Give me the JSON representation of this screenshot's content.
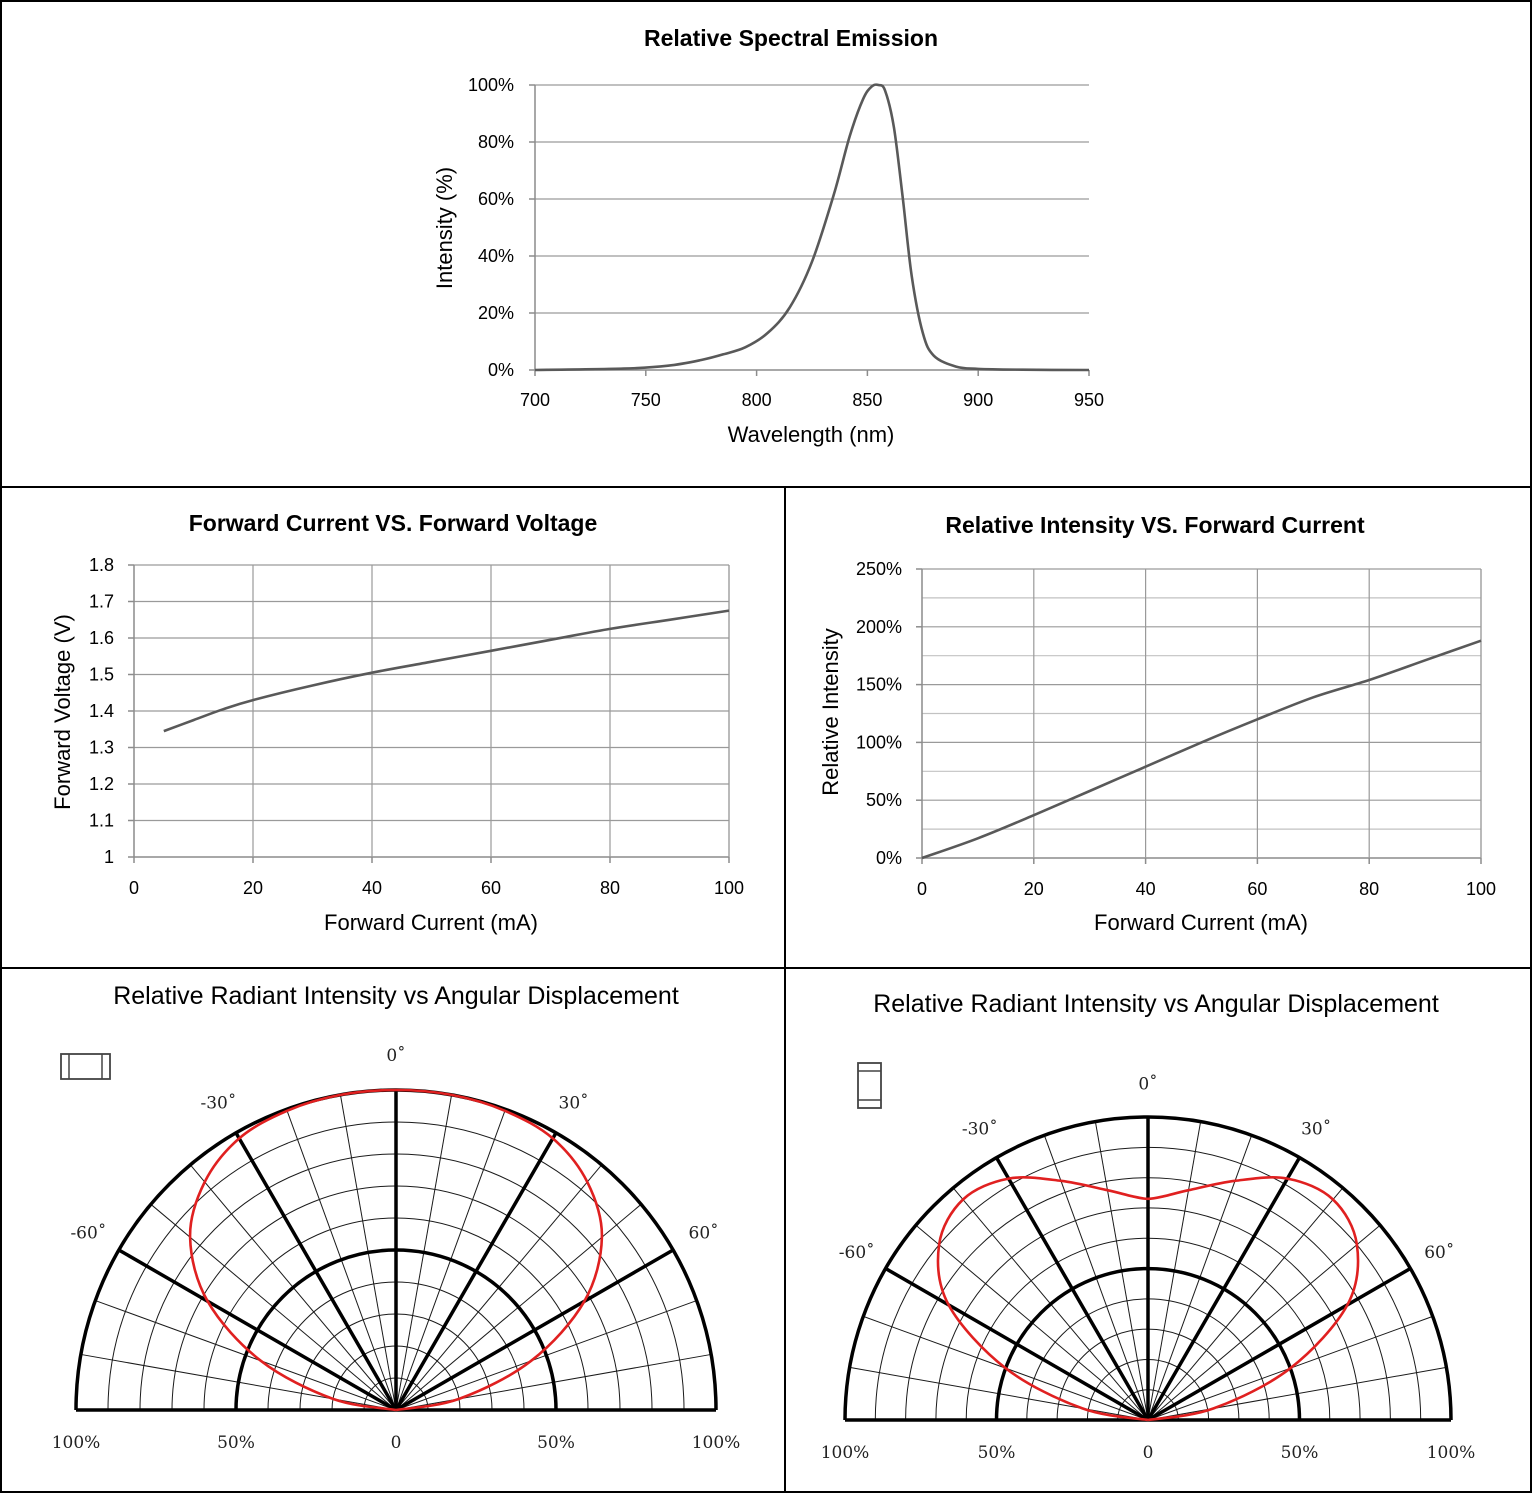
{
  "chart_data": [
    {
      "id": "spectral",
      "type": "line",
      "title": "Relative Spectral Emission",
      "xlabel": "Wavelength (nm)",
      "ylabel": "Intensity (%)",
      "xlim": [
        700,
        950
      ],
      "ylim": [
        0,
        100
      ],
      "xticks": [
        "700",
        "750",
        "800",
        "850",
        "900",
        "950"
      ],
      "yticks": [
        "0%",
        "20%",
        "40%",
        "60%",
        "80%",
        "100%"
      ],
      "grid": "horizontal",
      "series": [
        {
          "x": [
            700,
            740,
            760,
            775,
            785,
            795,
            805,
            815,
            825,
            835,
            842,
            848,
            852,
            855,
            858,
            862,
            866,
            870,
            875,
            880,
            890,
            900,
            920,
            950
          ],
          "y": [
            0,
            0.5,
            1.5,
            3.5,
            5.5,
            8,
            13,
            22,
            38,
            62,
            82,
            95,
            99.5,
            100,
            98,
            85,
            60,
            33,
            13,
            5,
            1.2,
            0.4,
            0.1,
            0
          ]
        }
      ],
      "color": "#595959"
    },
    {
      "id": "iv",
      "type": "line",
      "title": "Forward Current VS. Forward Voltage",
      "xlabel": "Forward Current (mA)",
      "ylabel": "Forward Voltage (V)",
      "xlim": [
        0,
        100
      ],
      "ylim": [
        1,
        1.8
      ],
      "xticks": [
        "0",
        "20",
        "40",
        "60",
        "80",
        "100"
      ],
      "yticks": [
        "1",
        "1.1",
        "1.2",
        "1.3",
        "1.4",
        "1.5",
        "1.6",
        "1.7",
        "1.8"
      ],
      "grid": "both",
      "series": [
        {
          "x": [
            5,
            10,
            15,
            20,
            30,
            40,
            50,
            60,
            70,
            80,
            90,
            100
          ],
          "y": [
            1.345,
            1.375,
            1.405,
            1.43,
            1.47,
            1.505,
            1.535,
            1.565,
            1.595,
            1.625,
            1.65,
            1.675
          ]
        }
      ],
      "color": "#595959"
    },
    {
      "id": "li",
      "type": "line",
      "title": "Relative Intensity VS. Forward Current",
      "xlabel": "Forward Current (mA)",
      "ylabel": "Relative Intensity",
      "xlim": [
        0,
        100
      ],
      "ylim": [
        0,
        250
      ],
      "xticks": [
        "0",
        "20",
        "40",
        "60",
        "80",
        "100"
      ],
      "yticks": [
        "0%",
        "50%",
        "100%",
        "150%",
        "200%",
        "250%"
      ],
      "grid": "both",
      "series": [
        {
          "x": [
            0,
            10,
            20,
            30,
            40,
            50,
            60,
            70,
            80,
            90,
            100
          ],
          "y": [
            0,
            17,
            37,
            58,
            79,
            100,
            120,
            139,
            154,
            171,
            188
          ]
        }
      ],
      "color": "#595959"
    },
    {
      "id": "polar-left",
      "type": "polar",
      "title": "Relative Radiant Intensity vs Angular Displacement",
      "angle_labels": [
        "-60˚",
        "-30˚",
        "0˚",
        "30˚",
        "60˚"
      ],
      "radial_labels": [
        "100%",
        "50%",
        "0",
        "50%",
        "100%"
      ],
      "series": [
        {
          "angle_deg": [
            -90,
            -80,
            -70,
            -60,
            -50,
            -40,
            -30,
            -20,
            -10,
            0,
            10,
            20,
            30,
            40,
            50,
            60,
            70,
            80,
            90
          ],
          "r": [
            0,
            0.2,
            0.45,
            0.68,
            0.84,
            0.93,
            0.98,
            0.995,
            1,
            1,
            1,
            0.995,
            0.98,
            0.93,
            0.84,
            0.68,
            0.45,
            0.2,
            0
          ]
        }
      ],
      "color": "#e02020"
    },
    {
      "id": "polar-right",
      "type": "polar",
      "title": "Relative Radiant Intensity vs Angular Displacement",
      "angle_labels": [
        "-60˚",
        "-30˚",
        "0˚",
        "30˚",
        "60˚"
      ],
      "radial_labels": [
        "100%",
        "50%",
        "0",
        "50%",
        "100%"
      ],
      "series": [
        {
          "angle_deg": [
            -90,
            -80,
            -70,
            -60,
            -50,
            -40,
            -30,
            -20,
            -10,
            -4,
            0,
            4,
            10,
            20,
            30,
            40,
            50,
            60,
            70,
            80,
            90
          ],
          "r": [
            0,
            0.22,
            0.5,
            0.76,
            0.9,
            0.95,
            0.92,
            0.84,
            0.77,
            0.74,
            0.73,
            0.74,
            0.77,
            0.84,
            0.92,
            0.95,
            0.9,
            0.76,
            0.5,
            0.22,
            0
          ]
        }
      ],
      "color": "#e02020"
    }
  ]
}
